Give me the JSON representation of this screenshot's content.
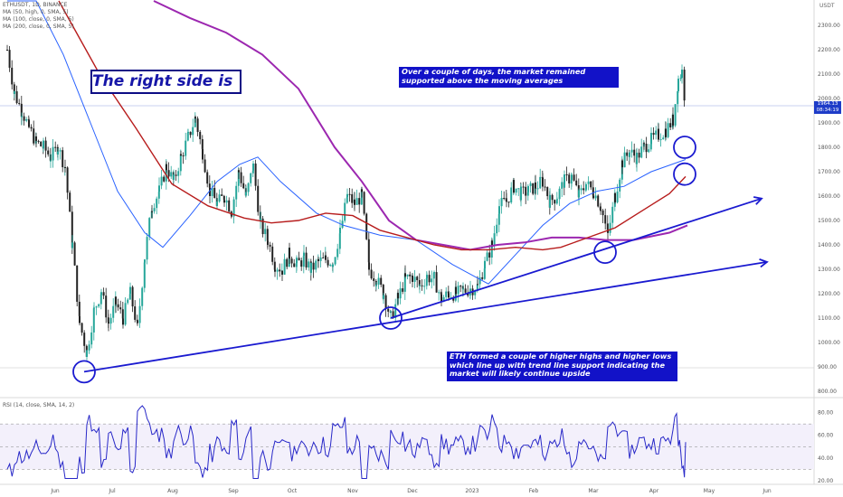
{
  "chart_title": "ETHUSDT, 1D, BINANCE",
  "indicators": [
    "MA (50, high, 0, SMA, 5)",
    "MA (100, close, 0, SMA, 5)",
    "MA (200, close, 0, SMA, 5)"
  ],
  "rsi_label": "RSI (14, close, SMA, 14, 2)",
  "annotations": {
    "title_box": "The right side is ↑",
    "note_top": "Over a couple of days, the market remained supported above the moving averages",
    "note_bottom": "ETH formed a couple of higher highs and higher lows which line up with trend line support indicating the market will likely continue upside"
  },
  "price_badge": {
    "price": "1964.13",
    "countdown": "08:34:19"
  },
  "colors": {
    "up": "#26a69a",
    "down": "#222222",
    "ma50": "#2962ff",
    "ma100": "#9c27b0",
    "ma200": "#b71c1c",
    "trend": "#1a1ad0",
    "rsi": "#2828c8",
    "badge": "#1e3cc8"
  },
  "chart_data": {
    "type": "candlestick",
    "title": "ETHUSDT, 1D, BINANCE",
    "y_unit": "USDT",
    "ylim": [
      800,
      2400
    ],
    "y_ticks": [
      "2300.00",
      "2200.00",
      "2100.00",
      "2000.00",
      "1900.00",
      "1800.00",
      "1700.00",
      "1600.00",
      "1500.00",
      "1400.00",
      "1300.00",
      "1200.00",
      "1100.00",
      "1000.00",
      "900.00",
      "800.00"
    ],
    "x_ticks": [
      "Jun",
      "Jul",
      "Aug",
      "Sep",
      "Oct",
      "Nov",
      "Dec",
      "2023",
      "Feb",
      "Mar",
      "Apr",
      "May",
      "Jun"
    ],
    "close_path": [
      [
        8,
        2200
      ],
      [
        16,
        2020
      ],
      [
        24,
        1950
      ],
      [
        32,
        1880
      ],
      [
        40,
        1820
      ],
      [
        48,
        1800
      ],
      [
        56,
        1760
      ],
      [
        64,
        1800
      ],
      [
        72,
        1720
      ],
      [
        80,
        1400
      ],
      [
        88,
        1080
      ],
      [
        96,
        960
      ],
      [
        104,
        1130
      ],
      [
        112,
        1210
      ],
      [
        120,
        1080
      ],
      [
        128,
        1160
      ],
      [
        136,
        1100
      ],
      [
        144,
        1200
      ],
      [
        152,
        1060
      ],
      [
        160,
        1350
      ],
      [
        168,
        1560
      ],
      [
        176,
        1620
      ],
      [
        184,
        1720
      ],
      [
        192,
        1660
      ],
      [
        200,
        1760
      ],
      [
        208,
        1840
      ],
      [
        216,
        1920
      ],
      [
        224,
        1780
      ],
      [
        232,
        1620
      ],
      [
        240,
        1570
      ],
      [
        248,
        1600
      ],
      [
        256,
        1540
      ],
      [
        264,
        1700
      ],
      [
        272,
        1600
      ],
      [
        280,
        1720
      ],
      [
        288,
        1480
      ],
      [
        296,
        1420
      ],
      [
        304,
        1320
      ],
      [
        312,
        1300
      ],
      [
        320,
        1360
      ],
      [
        328,
        1320
      ],
      [
        336,
        1340
      ],
      [
        344,
        1300
      ],
      [
        352,
        1330
      ],
      [
        360,
        1340
      ],
      [
        368,
        1330
      ],
      [
        376,
        1450
      ],
      [
        384,
        1600
      ],
      [
        392,
        1570
      ],
      [
        400,
        1600
      ],
      [
        408,
        1300
      ],
      [
        416,
        1260
      ],
      [
        424,
        1200
      ],
      [
        432,
        1100
      ],
      [
        440,
        1180
      ],
      [
        448,
        1260
      ],
      [
        456,
        1270
      ],
      [
        464,
        1230
      ],
      [
        472,
        1270
      ],
      [
        480,
        1260
      ],
      [
        488,
        1180
      ],
      [
        496,
        1200
      ],
      [
        504,
        1200
      ],
      [
        512,
        1210
      ],
      [
        520,
        1220
      ],
      [
        528,
        1230
      ],
      [
        536,
        1320
      ],
      [
        544,
        1400
      ],
      [
        552,
        1560
      ],
      [
        560,
        1580
      ],
      [
        568,
        1640
      ],
      [
        576,
        1610
      ],
      [
        584,
        1620
      ],
      [
        592,
        1640
      ],
      [
        600,
        1660
      ],
      [
        608,
        1580
      ],
      [
        616,
        1600
      ],
      [
        624,
        1660
      ],
      [
        632,
        1680
      ],
      [
        640,
        1600
      ],
      [
        648,
        1650
      ],
      [
        656,
        1620
      ],
      [
        664,
        1560
      ],
      [
        672,
        1440
      ],
      [
        680,
        1600
      ],
      [
        688,
        1740
      ],
      [
        696,
        1780
      ],
      [
        704,
        1760
      ],
      [
        712,
        1800
      ],
      [
        720,
        1830
      ],
      [
        728,
        1850
      ],
      [
        736,
        1870
      ],
      [
        744,
        1910
      ],
      [
        750,
        2080
      ],
      [
        754,
        2110
      ],
      [
        758,
        1964
      ]
    ],
    "ma50_path": [
      [
        8,
        2400
      ],
      [
        40,
        2400
      ],
      [
        70,
        2180
      ],
      [
        100,
        1900
      ],
      [
        130,
        1620
      ],
      [
        160,
        1450
      ],
      [
        180,
        1390
      ],
      [
        210,
        1520
      ],
      [
        240,
        1660
      ],
      [
        265,
        1730
      ],
      [
        285,
        1760
      ],
      [
        310,
        1660
      ],
      [
        350,
        1530
      ],
      [
        380,
        1480
      ],
      [
        420,
        1440
      ],
      [
        460,
        1420
      ],
      [
        500,
        1320
      ],
      [
        540,
        1240
      ],
      [
        570,
        1360
      ],
      [
        600,
        1480
      ],
      [
        630,
        1570
      ],
      [
        660,
        1620
      ],
      [
        690,
        1640
      ],
      [
        720,
        1700
      ],
      [
        758,
        1750
      ]
    ],
    "ma100_path": [
      [
        170,
        2400
      ],
      [
        210,
        2330
      ],
      [
        250,
        2270
      ],
      [
        290,
        2180
      ],
      [
        330,
        2040
      ],
      [
        370,
        1800
      ],
      [
        400,
        1660
      ],
      [
        430,
        1500
      ],
      [
        460,
        1420
      ],
      [
        490,
        1400
      ],
      [
        520,
        1380
      ],
      [
        550,
        1400
      ],
      [
        580,
        1410
      ],
      [
        610,
        1430
      ],
      [
        640,
        1430
      ],
      [
        670,
        1420
      ],
      [
        700,
        1420
      ],
      [
        740,
        1450
      ],
      [
        760,
        1480
      ]
    ],
    "ma200_path": [
      [
        65,
        2400
      ],
      [
        110,
        2100
      ],
      [
        150,
        1880
      ],
      [
        190,
        1650
      ],
      [
        230,
        1560
      ],
      [
        270,
        1510
      ],
      [
        300,
        1490
      ],
      [
        330,
        1500
      ],
      [
        360,
        1530
      ],
      [
        390,
        1520
      ],
      [
        420,
        1460
      ],
      [
        450,
        1430
      ],
      [
        480,
        1400
      ],
      [
        510,
        1380
      ],
      [
        540,
        1380
      ],
      [
        570,
        1390
      ],
      [
        600,
        1380
      ],
      [
        620,
        1390
      ],
      [
        650,
        1430
      ],
      [
        680,
        1470
      ],
      [
        710,
        1540
      ],
      [
        740,
        1610
      ],
      [
        758,
        1680
      ]
    ],
    "trend_lines": [
      [
        [
          93,
          880
        ],
        [
          848,
          1330
        ]
      ],
      [
        [
          432,
          1100
        ],
        [
          842,
          1590
        ]
      ]
    ],
    "circles": [
      [
        93,
        880
      ],
      [
        432,
        1100
      ],
      [
        669,
        1370
      ],
      [
        757,
        1690
      ],
      [
        757,
        1800
      ]
    ],
    "rsi": {
      "ylim": [
        20,
        90
      ],
      "levels": [
        "80.00",
        "60.00",
        "40.00",
        "20.00"
      ],
      "last": 54
    }
  }
}
